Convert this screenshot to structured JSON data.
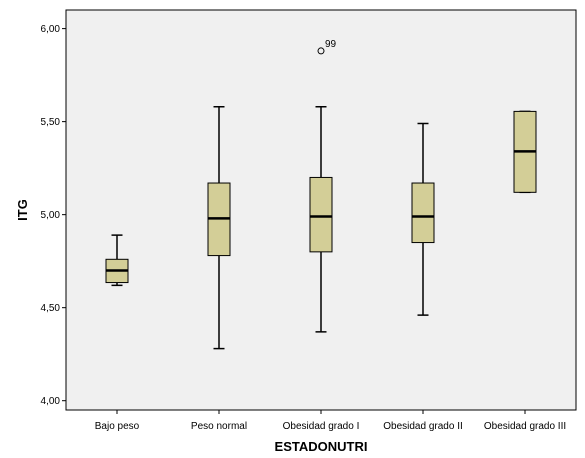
{
  "chart_data": {
    "type": "boxplot",
    "xlabel": "ESTADONUTRI",
    "ylabel": "ITG",
    "ylim": [
      3.95,
      6.1
    ],
    "yticks": [
      {
        "value": 4.0,
        "label": "4,00"
      },
      {
        "value": 4.5,
        "label": "4,50"
      },
      {
        "value": 5.0,
        "label": "5,00"
      },
      {
        "value": 5.5,
        "label": "5,50"
      },
      {
        "value": 6.0,
        "label": "6,00"
      }
    ],
    "categories": [
      "Bajo peso",
      "Peso normal",
      "Obesidad grado I",
      "Obesidad grado II",
      "Obesidad grado III"
    ],
    "boxes": [
      {
        "category": "Bajo peso",
        "min": 4.62,
        "q1": 4.635,
        "median": 4.7,
        "q3": 4.76,
        "max": 4.89,
        "outliers": []
      },
      {
        "category": "Peso normal",
        "min": 4.28,
        "q1": 4.78,
        "median": 4.98,
        "q3": 5.17,
        "max": 5.58,
        "outliers": []
      },
      {
        "category": "Obesidad grado I",
        "min": 4.37,
        "q1": 4.8,
        "median": 4.99,
        "q3": 5.2,
        "max": 5.58,
        "outliers": [
          {
            "value": 5.88,
            "label": "99"
          }
        ]
      },
      {
        "category": "Obesidad grado II",
        "min": 4.46,
        "q1": 4.85,
        "median": 4.99,
        "q3": 5.17,
        "max": 5.49,
        "outliers": []
      },
      {
        "category": "Obesidad grado III",
        "min": 5.12,
        "q1": 5.12,
        "median": 5.34,
        "q3": 5.555,
        "max": 5.555,
        "outliers": []
      }
    ],
    "colors": {
      "plot_background": "#F0F0F0",
      "box_fill": "#D3CE97",
      "outline": "#000000",
      "page_background": "#FFFFFF"
    }
  }
}
